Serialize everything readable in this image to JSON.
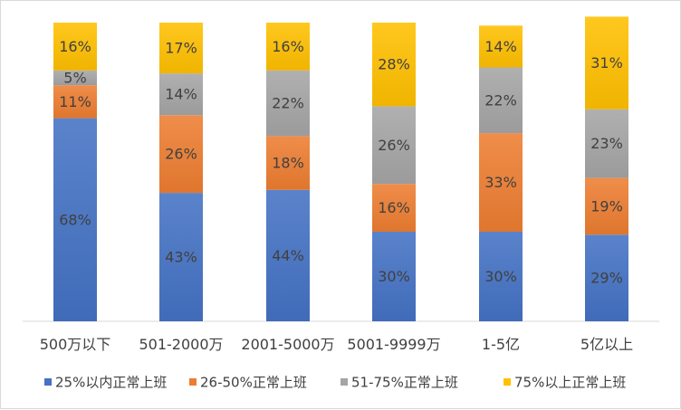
{
  "chart_data": {
    "type": "bar",
    "stacked": true,
    "percent": true,
    "title": "",
    "xlabel": "",
    "ylabel": "",
    "ylim": [
      0,
      100
    ],
    "grid": false,
    "legend_position": "bottom",
    "categories": [
      "500万以下",
      "501-2000万",
      "2001-5000万",
      "5001-9999万",
      "1-5亿",
      "5亿以上"
    ],
    "series": [
      {
        "name": "25%以内正常上班",
        "color": "#4472C4",
        "values": [
          68,
          43,
          44,
          30,
          30,
          29
        ]
      },
      {
        "name": "26-50%正常上班",
        "color": "#ED7D31",
        "values": [
          11,
          26,
          18,
          16,
          33,
          19
        ]
      },
      {
        "name": "51-75%正常上班",
        "color": "#A5A5A5",
        "values": [
          5,
          14,
          22,
          26,
          22,
          23
        ]
      },
      {
        "name": "75%以上正常上班",
        "color": "#FFC000",
        "values": [
          16,
          17,
          16,
          28,
          14,
          31
        ]
      }
    ]
  }
}
